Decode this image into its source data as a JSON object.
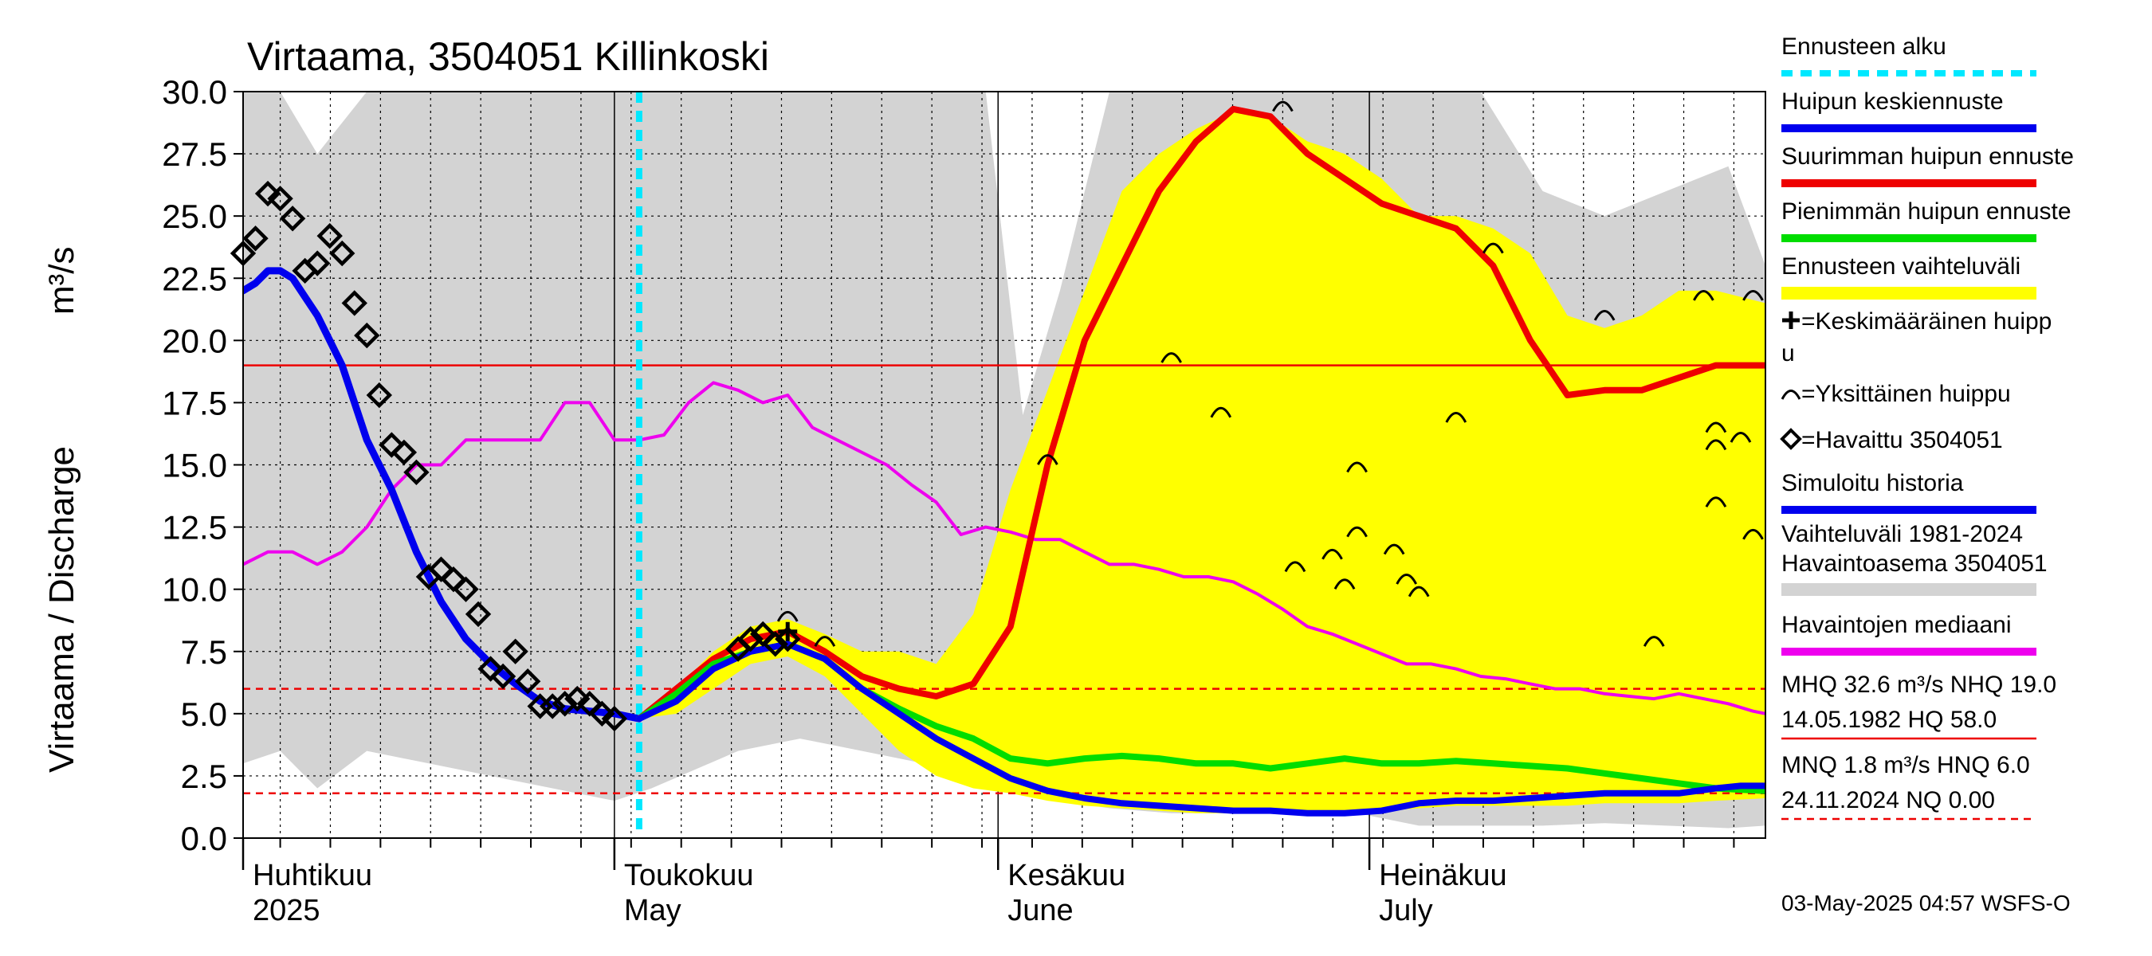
{
  "chart_data": {
    "type": "line",
    "title": "Virtaama, 3504051 Killinkoski",
    "ylabel": "Virtaama / Discharge",
    "yunit": "m³/s",
    "ylim": [
      0,
      30
    ],
    "yticks": [
      "0.0",
      "2.5",
      "5.0",
      "7.5",
      "10.0",
      "12.5",
      "15.0",
      "17.5",
      "20.0",
      "22.5",
      "25.0",
      "27.5",
      "30.0"
    ],
    "xlim_days": [
      0,
      123
    ],
    "x_axis_note": "days from 2025-04-01",
    "forecast_start_day": 32,
    "month_ticks": [
      {
        "day": 0,
        "label1": "Huhtikuu",
        "label2": "2025"
      },
      {
        "day": 30,
        "label1": "Toukokuu",
        "label2": "May"
      },
      {
        "day": 61,
        "label1": "Kesäkuu",
        "label2": "June"
      },
      {
        "day": 91,
        "label1": "Heinäkuu",
        "label2": "July"
      }
    ],
    "hlines": [
      {
        "name": "NHQ",
        "value": 19.0,
        "style": "solid",
        "color": "#ee0000"
      },
      {
        "name": "HNQ",
        "value": 6.0,
        "style": "dashed",
        "color": "#ee0000"
      },
      {
        "name": "MNQ",
        "value": 1.8,
        "style": "dashed",
        "color": "#ee0000"
      }
    ],
    "variation_band_grey": {
      "days": [
        0,
        3,
        6,
        10,
        15,
        20,
        25,
        30,
        33,
        40,
        45,
        50,
        55,
        60,
        63,
        66,
        70,
        75,
        80,
        85,
        90,
        95,
        100,
        105,
        110,
        115,
        120,
        123
      ],
      "upper": [
        30,
        30,
        27.5,
        30,
        30,
        30,
        30,
        30,
        30,
        30,
        30,
        30,
        30,
        30,
        17,
        22,
        30,
        30,
        30,
        30,
        30,
        30,
        30,
        26,
        25,
        26,
        27,
        23
      ],
      "lower": [
        3,
        3.5,
        2,
        3.5,
        3,
        2.5,
        2,
        1.5,
        2,
        3.5,
        4,
        3.5,
        3,
        2,
        1.8,
        1.5,
        1.2,
        1,
        1,
        1,
        1,
        0.5,
        0.5,
        0.5,
        0.6,
        0.5,
        0.4,
        0.5
      ]
    },
    "forecast_band_yellow": {
      "days": [
        32,
        35,
        38,
        41,
        44,
        47,
        50,
        53,
        56,
        59,
        62,
        65,
        68,
        71,
        74,
        77,
        80,
        83,
        86,
        89,
        92,
        95,
        98,
        101,
        104,
        107,
        110,
        113,
        116,
        119,
        123
      ],
      "upper": [
        4.8,
        6,
        7.5,
        8.5,
        8.8,
        8.2,
        7.5,
        7.5,
        7,
        9,
        14,
        18,
        22,
        26,
        27.5,
        28.5,
        29.2,
        29,
        28,
        27.5,
        26.5,
        25,
        25,
        24.5,
        23.5,
        21,
        20.5,
        21,
        22,
        22,
        21.5
      ],
      "lower": [
        4.8,
        5,
        6,
        7,
        7.3,
        6.5,
        5,
        3.5,
        2.5,
        2,
        1.8,
        1.5,
        1.3,
        1.2,
        1.1,
        1.0,
        1.0,
        1.0,
        1.0,
        1.0,
        1.1,
        1.2,
        1.3,
        1.3,
        1.3,
        1.3,
        1.4,
        1.4,
        1.4,
        1.5,
        1.6
      ]
    },
    "series": [
      {
        "name": "Havaintojen mediaani",
        "color": "#ee00ee",
        "width": 4,
        "days": [
          0,
          2,
          4,
          6,
          8,
          10,
          12,
          14,
          16,
          18,
          20,
          22,
          24,
          26,
          28,
          30,
          32,
          34,
          36,
          38,
          40,
          42,
          44,
          46,
          48,
          50,
          52,
          54,
          56,
          58,
          60,
          62,
          64,
          66,
          68,
          70,
          72,
          74,
          76,
          78,
          80,
          82,
          84,
          86,
          88,
          90,
          92,
          94,
          96,
          98,
          100,
          102,
          104,
          106,
          108,
          110,
          112,
          114,
          116,
          118,
          120,
          122,
          123
        ],
        "values": [
          11,
          11.5,
          11.5,
          11,
          11.5,
          12.5,
          14,
          15,
          15,
          16,
          16,
          16,
          16,
          17.5,
          17.5,
          16,
          16,
          16.2,
          17.5,
          18.3,
          18,
          17.5,
          17.8,
          16.5,
          16,
          15.5,
          15,
          14.2,
          13.5,
          12.2,
          12.5,
          12.3,
          12,
          12,
          11.5,
          11,
          11,
          10.8,
          10.5,
          10.5,
          10.3,
          9.8,
          9.2,
          8.5,
          8.2,
          7.8,
          7.4,
          7.0,
          7.0,
          6.8,
          6.5,
          6.4,
          6.2,
          6.0,
          6.0,
          5.8,
          5.7,
          5.6,
          5.8,
          5.6,
          5.4,
          5.1,
          5.0
        ]
      },
      {
        "name": "Ennusteen alku",
        "color": "#00e8ff",
        "width": 8,
        "type": "vline",
        "day": 32
      },
      {
        "name": "Simuloitu historia",
        "color": "#0000ee",
        "width": 9,
        "days": [
          0,
          1,
          2,
          3,
          4,
          6,
          8,
          10,
          12,
          14,
          16,
          18,
          20,
          22,
          24,
          26,
          28,
          30,
          32
        ],
        "values": [
          22,
          22.3,
          22.8,
          22.8,
          22.5,
          21,
          19,
          16,
          14,
          11.5,
          9.5,
          8,
          7,
          6.2,
          5.5,
          5.2,
          5.1,
          5.0,
          4.8
        ]
      },
      {
        "name": "Suurimman huipun ennuste",
        "color": "#ee0000",
        "width": 8,
        "days": [
          32,
          35,
          38,
          41,
          44,
          47,
          50,
          53,
          56,
          59,
          62,
          65,
          68,
          71,
          74,
          77,
          80,
          83,
          86,
          89,
          92,
          95,
          98,
          101,
          104,
          107,
          110,
          113,
          116,
          119,
          123
        ],
        "values": [
          4.8,
          6,
          7.2,
          8,
          8.3,
          7.5,
          6.5,
          6,
          5.7,
          6.2,
          8.5,
          15,
          20,
          23,
          26,
          28,
          29.3,
          29,
          27.5,
          26.5,
          25.5,
          25,
          24.5,
          23,
          20,
          17.8,
          18,
          18,
          18.5,
          19,
          19
        ]
      },
      {
        "name": "Pienimmän huipun ennuste",
        "color": "#00dd00",
        "width": 8,
        "days": [
          32,
          35,
          38,
          41,
          44,
          47,
          50,
          53,
          56,
          59,
          62,
          65,
          68,
          71,
          74,
          77,
          80,
          83,
          86,
          89,
          92,
          95,
          98,
          101,
          104,
          107,
          110,
          113,
          116,
          119,
          123
        ],
        "values": [
          4.8,
          5.8,
          7,
          7.5,
          7.8,
          7.2,
          6,
          5.2,
          4.5,
          4.0,
          3.2,
          3.0,
          3.2,
          3.3,
          3.2,
          3.0,
          3.0,
          2.8,
          3.0,
          3.2,
          3.0,
          3.0,
          3.1,
          3.0,
          2.9,
          2.8,
          2.6,
          2.4,
          2.2,
          2.0,
          1.9
        ]
      },
      {
        "name": "Huipun keskiennuste",
        "color": "#0000ee",
        "width": 8,
        "days": [
          32,
          35,
          38,
          41,
          44,
          47,
          50,
          53,
          56,
          59,
          62,
          65,
          68,
          71,
          74,
          77,
          80,
          83,
          86,
          89,
          92,
          95,
          98,
          101,
          104,
          107,
          110,
          113,
          116,
          119,
          121,
          123
        ],
        "values": [
          4.8,
          5.5,
          6.8,
          7.5,
          7.8,
          7.2,
          6,
          5.0,
          4.0,
          3.2,
          2.4,
          1.9,
          1.6,
          1.4,
          1.3,
          1.2,
          1.1,
          1.1,
          1.0,
          1.0,
          1.1,
          1.4,
          1.5,
          1.5,
          1.6,
          1.7,
          1.8,
          1.8,
          1.8,
          2.0,
          2.1,
          2.1
        ]
      }
    ],
    "observed": {
      "name": "Havaittu 3504051",
      "days": [
        0,
        1,
        2,
        3,
        4,
        5,
        6,
        7,
        8,
        9,
        10,
        11,
        12,
        13,
        14,
        15,
        16,
        17,
        18,
        19,
        20,
        21,
        22,
        23,
        24,
        25,
        26,
        27,
        28,
        29,
        30,
        40,
        41,
        42,
        43,
        44
      ],
      "values": [
        23.5,
        24.1,
        25.9,
        25.7,
        24.9,
        22.8,
        23.1,
        24.2,
        23.5,
        21.5,
        20.2,
        17.8,
        15.8,
        15.5,
        14.7,
        10.5,
        10.8,
        10.4,
        10.0,
        9.0,
        6.8,
        6.5,
        7.5,
        6.3,
        5.3,
        5.3,
        5.4,
        5.6,
        5.4,
        5.0,
        4.8,
        7.6,
        8.0,
        8.2,
        7.8,
        8.0
      ]
    },
    "single_peaks": {
      "name": "Yksittäinen huippu",
      "days": [
        44,
        47,
        65,
        75,
        79,
        84,
        88,
        90,
        90,
        93,
        94,
        95,
        98,
        101,
        110,
        114,
        118,
        119,
        119,
        119,
        121,
        122,
        122,
        85,
        89
      ],
      "values": [
        9.0,
        8.0,
        15.3,
        19.4,
        17.2,
        29.5,
        11.5,
        15.0,
        12.4,
        11.7,
        10.5,
        10.0,
        17.0,
        23.8,
        21.1,
        8.0,
        21.9,
        16.6,
        15.9,
        13.6,
        16.2,
        12.3,
        21.9,
        11.0,
        10.3
      ]
    },
    "mean_peak": {
      "name": "Keskimääräinen huippu",
      "day": 44,
      "value": 8.3
    },
    "legend": [
      {
        "label": "Ennusteen alku",
        "kind": "dashline",
        "color": "#00e8ff"
      },
      {
        "label": "Huipun keskiennuste",
        "kind": "line",
        "color": "#0000ee"
      },
      {
        "label": "Suurimman huipun ennuste",
        "kind": "line",
        "color": "#ee0000"
      },
      {
        "label": "Pienimmän huipun ennuste",
        "kind": "line",
        "color": "#00dd00"
      },
      {
        "label": "Ennusteen vaihteluväli",
        "kind": "band",
        "color": "#ffff00"
      },
      {
        "label": "=Keskimääräinen huipp",
        "label2": "u",
        "kind": "plus",
        "color": "#000000"
      },
      {
        "label": "=Yksittäinen huippu",
        "kind": "arc",
        "color": "#000000"
      },
      {
        "label": "=Havaittu 3504051",
        "kind": "diamond",
        "color": "#000000"
      },
      {
        "label": "Simuloitu historia",
        "kind": "line",
        "color": "#0000ee"
      },
      {
        "label": "Vaihteluväli 1981-2024",
        "label2": " Havaintoasema 3504051",
        "kind": "band",
        "color": "#d3d3d3"
      },
      {
        "label": "Havaintojen mediaani",
        "kind": "line",
        "color": "#ee00ee"
      }
    ],
    "stats": [
      {
        "line1": "MHQ 32.6 m³/s NHQ 19.0",
        "line2": "14.05.1982 HQ 58.0",
        "rule": "solid"
      },
      {
        "line1": "MNQ  1.8 m³/s HNQ  6.0",
        "line2": "24.11.2024 NQ 0.00",
        "rule": "dashed"
      }
    ],
    "footer": "03-May-2025 04:57 WSFS-O"
  }
}
